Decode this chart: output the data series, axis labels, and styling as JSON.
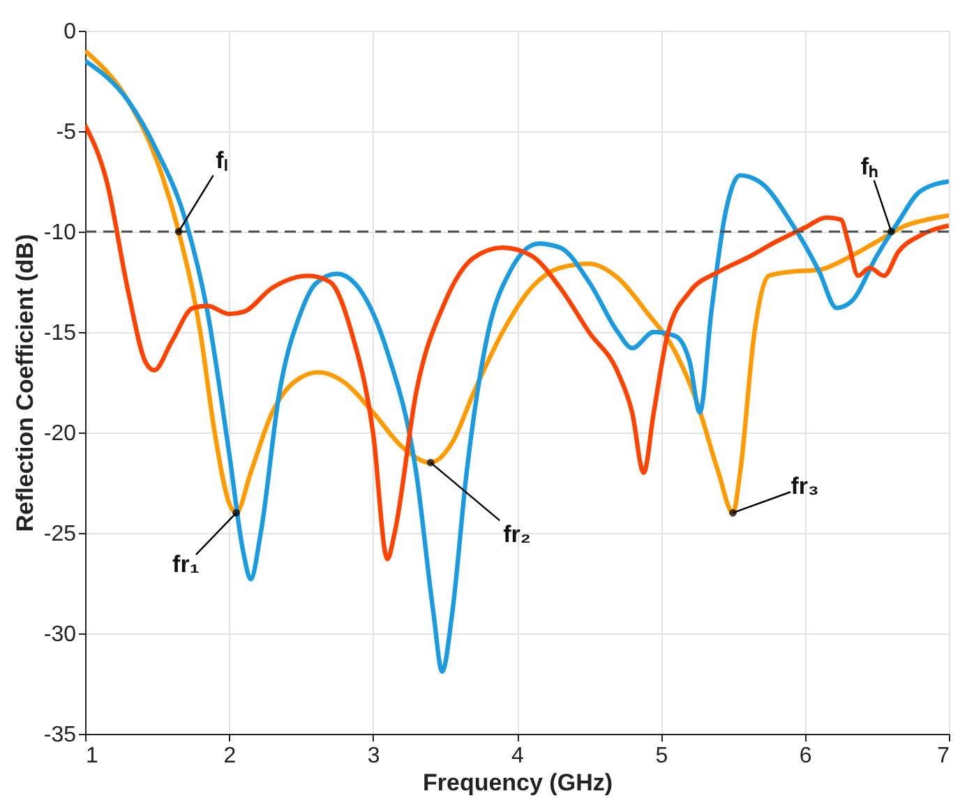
{
  "chart_data": {
    "type": "line",
    "xlabel": "Frequency (GHz)",
    "ylabel": "Reflection Coefficient (dB)",
    "xlim": [
      1,
      7
    ],
    "ylim": [
      -35,
      0
    ],
    "xticks": [
      1,
      2,
      3,
      4,
      5,
      6,
      7
    ],
    "yticks": [
      -35,
      -30,
      -25,
      -20,
      -15,
      -10,
      -5,
      0
    ],
    "grid": true,
    "line_style": "solid",
    "ref_lines": [
      {
        "axis": "y",
        "value": -10,
        "color": "#4d4d4d",
        "line_style": "dashed"
      }
    ],
    "annotations": [
      {
        "text": "fₗ",
        "x": 1.65,
        "y": -10
      },
      {
        "text": "fₕ",
        "x": 6.6,
        "y": -10
      },
      {
        "text": "fr₁",
        "x": 2.05,
        "y": -24
      },
      {
        "text": "fr₂",
        "x": 3.4,
        "y": -21.5
      },
      {
        "text": "fr₃",
        "x": 5.5,
        "y": -24
      }
    ],
    "series": [
      {
        "color": "#ff9a00",
        "x": [
          1,
          1.3,
          1.5,
          1.65,
          1.8,
          1.9,
          2.0,
          2.05,
          2.15,
          2.3,
          2.45,
          2.62,
          2.8,
          3.0,
          3.2,
          3.4,
          3.55,
          3.7,
          3.9,
          4.1,
          4.3,
          4.5,
          4.7,
          4.9,
          5.1,
          5.25,
          5.4,
          5.5,
          5.55,
          5.65,
          5.75,
          5.9,
          6.1,
          6.3,
          6.5,
          6.7,
          6.85,
          7
        ],
        "values": [
          -1,
          -3.5,
          -6.5,
          -10,
          -15,
          -20,
          -23.5,
          -24,
          -22,
          -19,
          -17.5,
          -17,
          -17.5,
          -19,
          -20.7,
          -21.5,
          -20.5,
          -18,
          -15,
          -12.8,
          -11.8,
          -11.6,
          -12.3,
          -14,
          -16,
          -18.5,
          -22,
          -24,
          -22,
          -15,
          -12.2,
          -12,
          -11.9,
          -11.3,
          -10.5,
          -9.7,
          -9.4,
          -9.2
        ]
      },
      {
        "color": "#1a9be0",
        "x": [
          1,
          1.3,
          1.5,
          1.7,
          1.85,
          2.0,
          2.1,
          2.15,
          2.22,
          2.35,
          2.5,
          2.6,
          2.75,
          2.9,
          3.1,
          3.3,
          3.42,
          3.48,
          3.55,
          3.65,
          3.8,
          3.95,
          4.15,
          4.3,
          4.5,
          4.7,
          4.8,
          4.95,
          5.1,
          5.2,
          5.27,
          5.35,
          5.45,
          5.55,
          5.7,
          5.9,
          6.1,
          6.22,
          6.32,
          6.5,
          6.65,
          6.8,
          7
        ],
        "values": [
          -1.5,
          -3.5,
          -6,
          -9.5,
          -14,
          -21,
          -26,
          -27.3,
          -25,
          -18,
          -14,
          -12.6,
          -12.1,
          -12.8,
          -16,
          -22,
          -29,
          -31.9,
          -29,
          -22,
          -15,
          -12,
          -10.6,
          -10.8,
          -12.5,
          -15,
          -15.8,
          -15,
          -15.2,
          -16.5,
          -19,
          -14,
          -9,
          -7.2,
          -7.6,
          -9.5,
          -12,
          -13.8,
          -13.5,
          -11.2,
          -9.5,
          -8,
          -7.5
        ]
      },
      {
        "color": "#ff4200",
        "x": [
          1,
          1.15,
          1.3,
          1.42,
          1.48,
          1.6,
          1.75,
          1.85,
          2.0,
          2.1,
          2.3,
          2.55,
          2.7,
          2.85,
          3.0,
          3.1,
          3.15,
          3.3,
          3.5,
          3.7,
          3.9,
          4.1,
          4.3,
          4.5,
          4.7,
          4.8,
          4.88,
          4.95,
          5.05,
          5.2,
          5.4,
          5.6,
          5.8,
          6.0,
          6.15,
          6.25,
          6.3,
          6.37,
          6.45,
          6.55,
          6.65,
          6.8,
          7
        ],
        "values": [
          -4.7,
          -7.5,
          -13,
          -16.5,
          -16.9,
          -15.5,
          -13.8,
          -13.7,
          -14.1,
          -14,
          -12.8,
          -12.2,
          -12.5,
          -15,
          -20,
          -26.3,
          -25,
          -18,
          -13.5,
          -11.3,
          -10.8,
          -11.2,
          -12.8,
          -15,
          -17,
          -19,
          -22,
          -19,
          -15,
          -13,
          -12,
          -11.3,
          -10.5,
          -9.8,
          -9.3,
          -9.4,
          -10.5,
          -12.2,
          -11.8,
          -12.2,
          -11,
          -10.2,
          -9.7
        ]
      }
    ]
  }
}
